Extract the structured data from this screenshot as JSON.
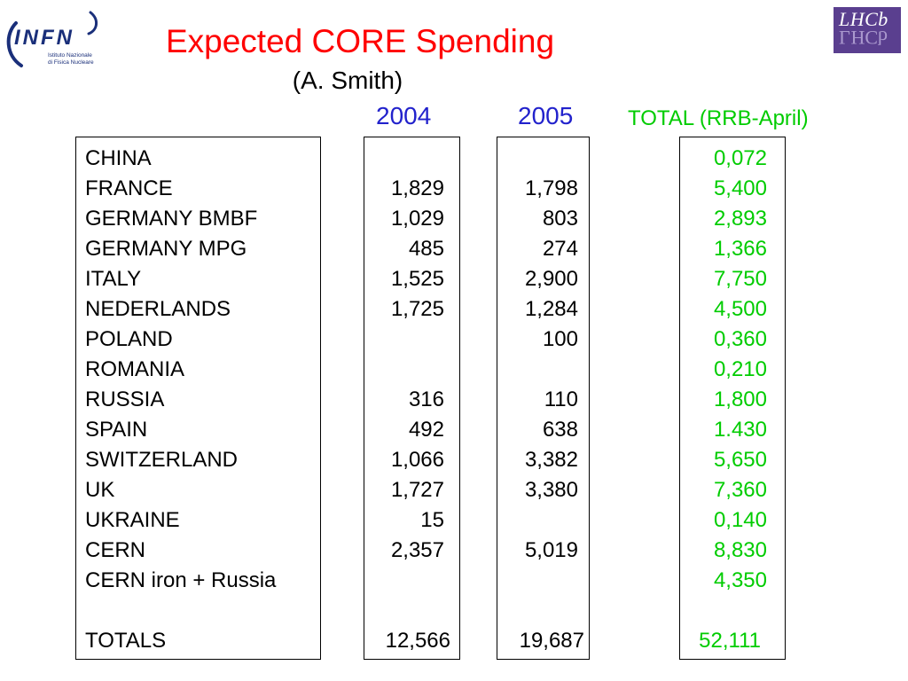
{
  "logos": {
    "infn": {
      "name": "INFN",
      "caption_line1": "Istituto Nazionale",
      "caption_line2": "di Fisica Nucleare"
    },
    "lhcb": {
      "text": "LHCb"
    }
  },
  "title": "Expected CORE Spending",
  "subtitle": "(A. Smith)",
  "columns": {
    "year_2004": "2004",
    "year_2005": "2005",
    "total": "TOTAL (RRB-April)"
  },
  "rows": [
    {
      "country": "CHINA",
      "y2004": "",
      "y2005": "",
      "total": "0,072"
    },
    {
      "country": "FRANCE",
      "y2004": "1,829",
      "y2005": "1,798",
      "total": "5,400"
    },
    {
      "country": "GERMANY BMBF",
      "y2004": "1,029",
      "y2005": "803",
      "total": "2,893"
    },
    {
      "country": "GERMANY MPG",
      "y2004": "485",
      "y2005": "274",
      "total": "1,366"
    },
    {
      "country": "ITALY",
      "y2004": "1,525",
      "y2005": "2,900",
      "total": "7,750"
    },
    {
      "country": "NEDERLANDS",
      "y2004": "1,725",
      "y2005": "1,284",
      "total": "4,500"
    },
    {
      "country": "POLAND",
      "y2004": "",
      "y2005": "100",
      "total": "0,360"
    },
    {
      "country": "ROMANIA",
      "y2004": "",
      "y2005": "",
      "total": "0,210"
    },
    {
      "country": "RUSSIA",
      "y2004": "316",
      "y2005": "110",
      "total": "1,800"
    },
    {
      "country": "SPAIN",
      "y2004": "492",
      "y2005": "638",
      "total": "1.430"
    },
    {
      "country": "SWITZERLAND",
      "y2004": "1,066",
      "y2005": "3,382",
      "total": "5,650"
    },
    {
      "country": "UK",
      "y2004": "1,727",
      "y2005": "3,380",
      "total": "7,360"
    },
    {
      "country": "UKRAINE",
      "y2004": "15",
      "y2005": "",
      "total": "0,140"
    },
    {
      "country": "CERN",
      "y2004": "2,357",
      "y2005": "5,019",
      "total": "8,830"
    },
    {
      "country": "CERN iron + Russia",
      "y2004": "",
      "y2005": "",
      "total": "4,350"
    }
  ],
  "totals": {
    "label": "TOTALS",
    "y2004": "12,566",
    "y2005": "19,687",
    "total": "52,111"
  }
}
